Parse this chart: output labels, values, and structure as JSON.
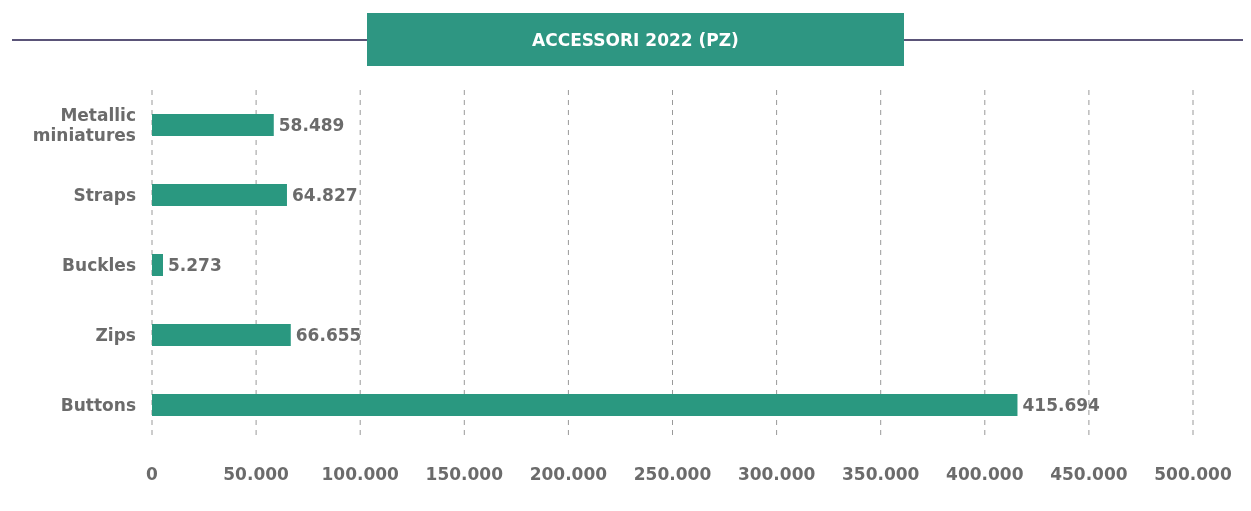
{
  "chart_data": {
    "type": "bar",
    "orientation": "horizontal",
    "title": "ACCESSORI 2022 (PZ)",
    "categories": [
      "Metallic miniatures",
      "Straps",
      "Buckles",
      "Zips",
      "Buttons"
    ],
    "values": [
      58489,
      64827,
      5273,
      66655,
      415694
    ],
    "value_labels": [
      "58.489",
      "64.827",
      "5.273",
      "66.655",
      "415.694"
    ],
    "color": "#2a9880",
    "xlim": [
      0,
      500000
    ],
    "xticks": [
      0,
      {
        "value": 50000,
        "label": "50.000"
      },
      {
        "value": 100000,
        "label": "100.000"
      },
      {
        "value": 150000,
        "label": "150.000"
      },
      {
        "value": 200000,
        "label": "200.000"
      },
      {
        "value": 250000,
        "label": "250.000"
      },
      {
        "value": 300000,
        "label": "300.000"
      },
      {
        "value": 350000,
        "label": "350.000"
      },
      {
        "value": 400000,
        "label": "400.000"
      },
      {
        "value": 450000,
        "label": "450.000"
      },
      {
        "value": 500000,
        "label": "500.000"
      }
    ],
    "grid": "x"
  }
}
